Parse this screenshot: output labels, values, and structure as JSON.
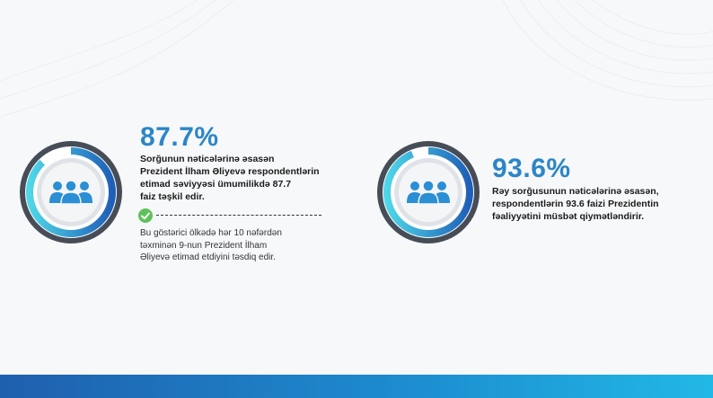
{
  "stats": [
    {
      "percent": "87.7%",
      "description_lines": [
        "Sorğunun nəticələrinə əsasən",
        "Prezident İlham Əliyevə respondentlərin",
        "etimad səviyyəsi ümumilikdə 87.7",
        "faiz təşkil edir."
      ],
      "note_lines": [
        "Bu göstərici ölkədə hər 10 nəfərdən",
        "təxminən 9-nun Prezident İlham",
        "Əliyevə etimad etdiyini təsdiq edir."
      ],
      "icon": "people-group-icon",
      "progress": 0.877
    },
    {
      "percent": "93.6%",
      "description_lines": [
        "Rəy sorğusunun nəticələrinə əsasən,",
        "respondentlərin 93.6 faizi Prezidentin",
        "fəaliyyətini müsbət qiymətləndirir."
      ],
      "icon": "people-group-icon",
      "progress": 0.936
    }
  ],
  "colors": {
    "accent": "#2b86c6",
    "ring_gradient_start": "#4fd6e8",
    "ring_gradient_end": "#1e5fb8",
    "ring_dark": "#474d57",
    "bottom_bar_start": "#1f5fae",
    "bottom_bar_end": "#22b8e6"
  }
}
